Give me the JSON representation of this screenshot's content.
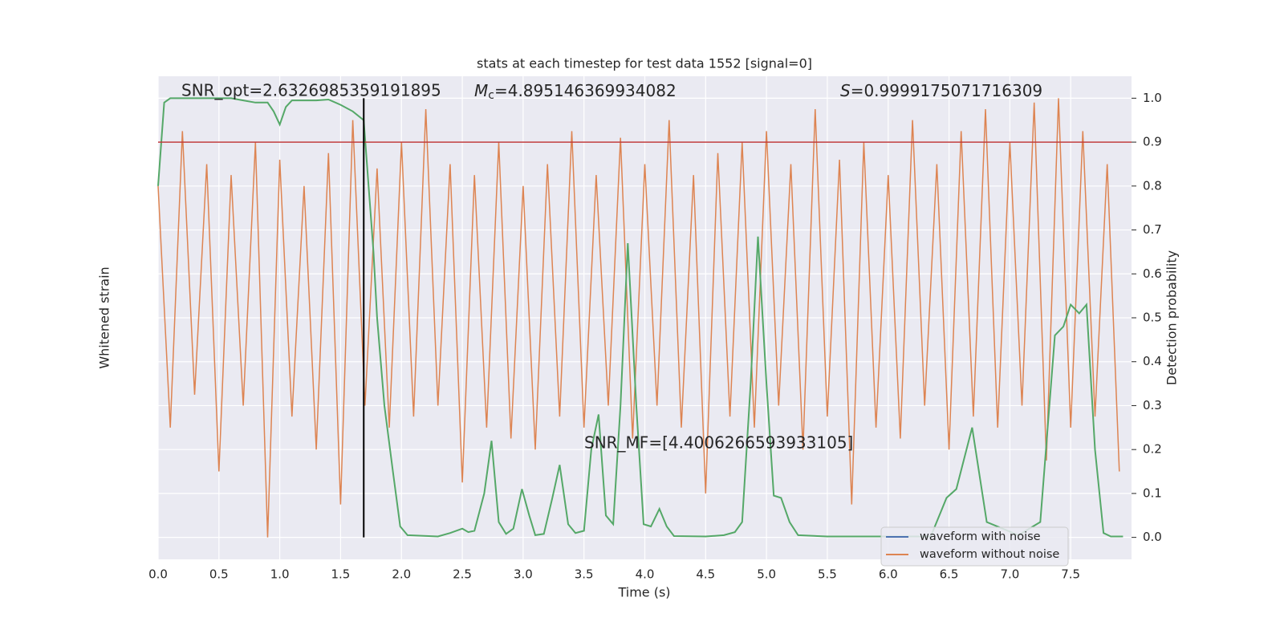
{
  "chart_data": {
    "type": "line",
    "title": "stats at each timestep for test data 1552 [signal=0]",
    "xlabel": "Time (s)",
    "ylabel": "Whitened strain",
    "y2label": "Detection probability",
    "xlim": [
      0,
      8
    ],
    "xticks": [
      {
        "value": 0,
        "label": "0.0"
      },
      0.5,
      {
        "value": 1,
        "label": "1.0"
      },
      1.5,
      {
        "value": 2,
        "label": "2.0"
      },
      2.5,
      {
        "value": 3,
        "label": "3.0"
      },
      3.5,
      {
        "value": 4,
        "label": "4.0"
      },
      4.5,
      {
        "value": 5,
        "label": "5.0"
      },
      5.5,
      {
        "value": 6,
        "label": "6.0"
      },
      6.5,
      {
        "value": 7,
        "label": "7.0"
      },
      7.5
    ],
    "ylim": [
      -1.2,
      1.0
    ],
    "y2lim": [
      -0.05,
      1.05
    ],
    "y2ticks": [
      {
        "value": 0,
        "label": "0.0"
      },
      0.1,
      0.2,
      0.3,
      0.4,
      0.5,
      0.6,
      0.7,
      0.8,
      0.9,
      {
        "value": 1,
        "label": "1.0"
      }
    ],
    "grid": true,
    "threshold": 0.9,
    "threshold_color": "#c03d3e",
    "marker_x": 1.69,
    "marker_color": "#000000",
    "x": [
      0.0,
      0.1,
      0.2,
      0.3,
      0.4,
      0.5,
      0.6,
      0.7,
      0.8,
      0.9,
      1.0,
      1.1,
      1.2,
      1.3,
      1.4,
      1.5,
      1.6,
      1.7,
      1.8,
      1.9,
      2.0,
      2.1,
      2.2,
      2.3,
      2.4,
      2.5,
      2.6,
      2.7,
      2.8,
      2.9,
      3.0,
      3.1,
      3.2,
      3.3,
      3.4,
      3.5,
      3.6,
      3.7,
      3.8,
      3.9,
      4.0,
      4.1,
      4.2,
      4.3,
      4.4,
      4.5,
      4.6,
      4.7,
      4.8,
      4.9,
      5.0,
      5.1,
      5.2,
      5.3,
      5.4,
      5.5,
      5.6,
      5.7,
      5.8,
      5.9,
      6.0,
      6.1,
      6.2,
      6.3,
      6.4,
      6.5,
      6.6,
      6.7,
      6.8,
      6.9,
      7.0,
      7.1,
      7.2,
      7.3,
      7.4,
      7.5,
      7.6,
      7.7,
      7.8,
      7.9
    ],
    "series": [
      {
        "name": "waveform with noise",
        "color": "#4c72b0"
      },
      {
        "name": "waveform without noise",
        "color": "#dd8452",
        "values": [
          0.5,
          -0.6,
          0.75,
          -0.45,
          0.6,
          -0.8,
          0.55,
          -0.5,
          0.7,
          -1.1,
          0.62,
          -0.55,
          0.5,
          -0.7,
          0.65,
          -0.95,
          0.8,
          -0.5,
          0.58,
          -0.6,
          0.7,
          -0.55,
          0.85,
          -0.5,
          0.6,
          -0.85,
          0.55,
          -0.6,
          0.7,
          -0.65,
          0.5,
          -0.7,
          0.6,
          -0.55,
          0.75,
          -0.6,
          0.55,
          -0.5,
          0.72,
          -0.65,
          0.6,
          -0.5,
          0.8,
          -0.6,
          0.55,
          -0.9,
          0.65,
          -0.55,
          0.7,
          -0.6,
          0.75,
          -0.5,
          0.6,
          -0.7,
          0.85,
          -0.55,
          0.62,
          -0.95,
          0.7,
          -0.6,
          0.55,
          -0.65,
          0.8,
          -0.5,
          0.6,
          -0.7,
          0.75,
          -0.55,
          0.85,
          -0.6,
          0.7,
          -0.5,
          0.88,
          -0.75,
          0.9,
          -0.6,
          0.75,
          -0.55,
          0.6,
          -0.8
        ]
      },
      {
        "name": "Detection probability",
        "color": "#55a868",
        "axis": "y2",
        "in_legend": false,
        "x": [
          0.0,
          0.05,
          0.1,
          0.6,
          0.7,
          0.8,
          0.9,
          0.95,
          1.0,
          1.05,
          1.1,
          1.3,
          1.4,
          1.5,
          1.6,
          1.69,
          1.77,
          1.8,
          1.86,
          1.93,
          1.99,
          2.05,
          2.3,
          2.4,
          2.5,
          2.55,
          2.6,
          2.68,
          2.74,
          2.8,
          2.86,
          2.92,
          2.99,
          3.05,
          3.1,
          3.17,
          3.24,
          3.3,
          3.37,
          3.43,
          3.5,
          3.56,
          3.62,
          3.68,
          3.74,
          3.8,
          3.86,
          3.93,
          3.99,
          4.05,
          4.12,
          4.18,
          4.24,
          4.5,
          4.65,
          4.74,
          4.8,
          4.87,
          4.93,
          5.0,
          5.06,
          5.12,
          5.19,
          5.26,
          5.5,
          6.0,
          6.35,
          6.48,
          6.56,
          6.69,
          6.81,
          6.94,
          7.07,
          7.25,
          7.37,
          7.44,
          7.5,
          7.57,
          7.63,
          7.7,
          7.77,
          7.83,
          7.93
        ],
        "values": [
          0.8,
          0.99,
          1.0,
          1.0,
          0.995,
          0.99,
          0.99,
          0.97,
          0.94,
          0.98,
          0.995,
          0.995,
          0.997,
          0.985,
          0.97,
          0.95,
          0.65,
          0.5,
          0.3,
          0.15,
          0.025,
          0.005,
          0.002,
          0.01,
          0.02,
          0.012,
          0.015,
          0.1,
          0.22,
          0.035,
          0.008,
          0.02,
          0.11,
          0.05,
          0.005,
          0.008,
          0.09,
          0.165,
          0.03,
          0.01,
          0.015,
          0.2,
          0.28,
          0.05,
          0.03,
          0.3,
          0.67,
          0.3,
          0.03,
          0.025,
          0.065,
          0.025,
          0.003,
          0.002,
          0.005,
          0.012,
          0.035,
          0.35,
          0.685,
          0.35,
          0.095,
          0.09,
          0.035,
          0.005,
          0.002,
          0.002,
          0.002,
          0.09,
          0.11,
          0.25,
          0.035,
          0.02,
          0.005,
          0.035,
          0.46,
          0.48,
          0.53,
          0.51,
          0.53,
          0.2,
          0.01,
          0.002,
          0.002
        ]
      }
    ],
    "annotations": [
      {
        "text": "SNR_opt=2.6326985359191895"
      },
      {
        "symbol": "M",
        "subscript": "c",
        "text": "=4.895146369934082"
      },
      {
        "symbol": "S",
        "text": "=0.9999175071716309"
      },
      {
        "text": "SNR_MF=[4.4006266593933105]"
      }
    ],
    "legend": "lower right"
  }
}
